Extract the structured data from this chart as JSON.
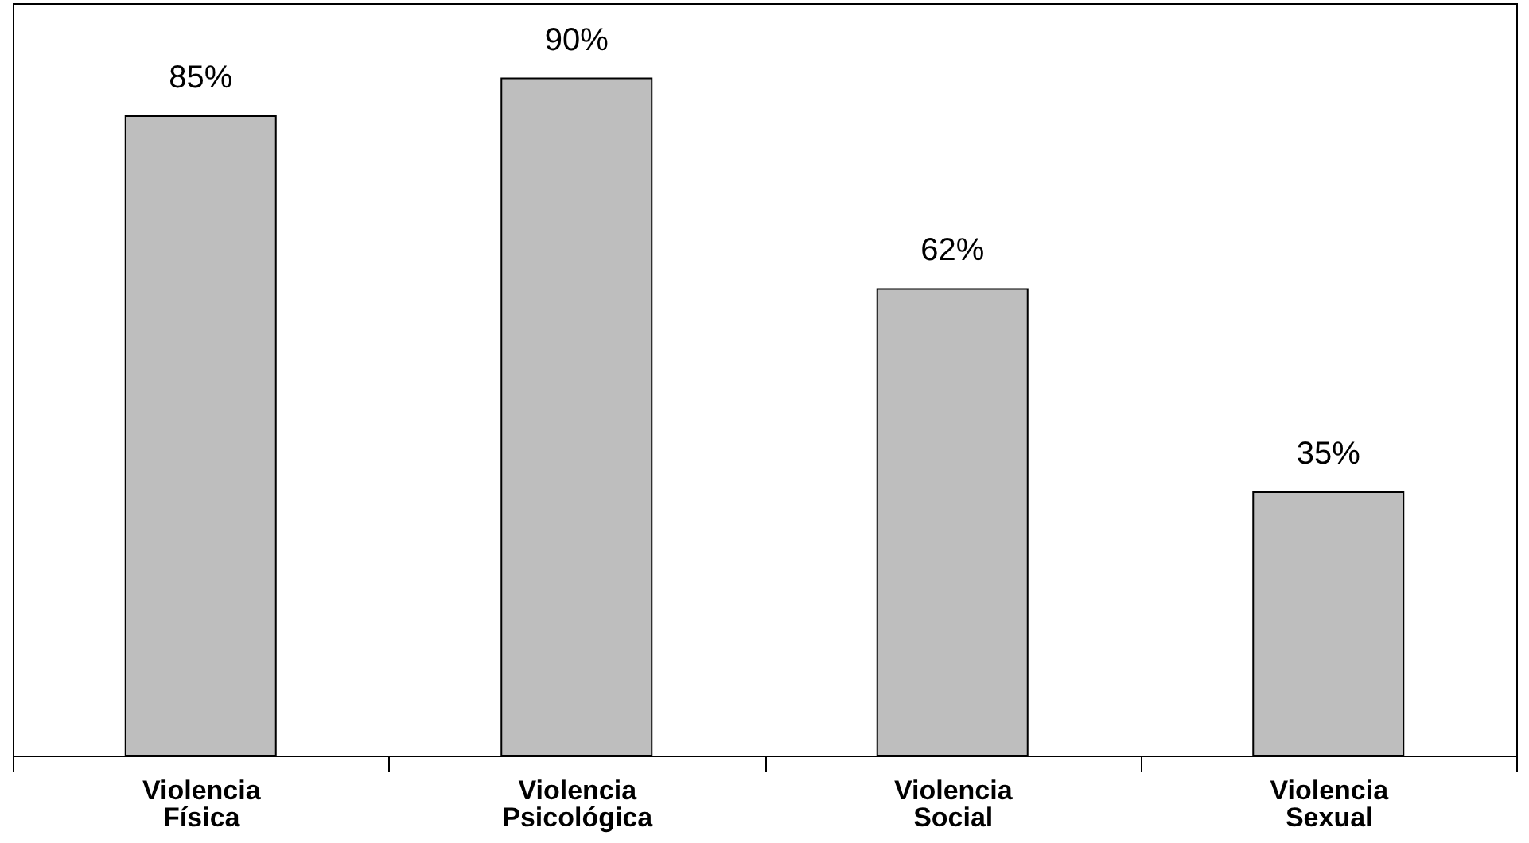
{
  "chart_data": {
    "type": "bar",
    "categories": [
      "Violencia Física",
      "Violencia Psicológica",
      "Violencia Social",
      "Violencia Sexual"
    ],
    "values": [
      85,
      90,
      62,
      35
    ],
    "value_labels": [
      "85%",
      "90%",
      "62%",
      "35%"
    ],
    "color": "#bebebe",
    "ylim": [
      0,
      100
    ],
    "tick_labels": "x",
    "grid": false
  }
}
